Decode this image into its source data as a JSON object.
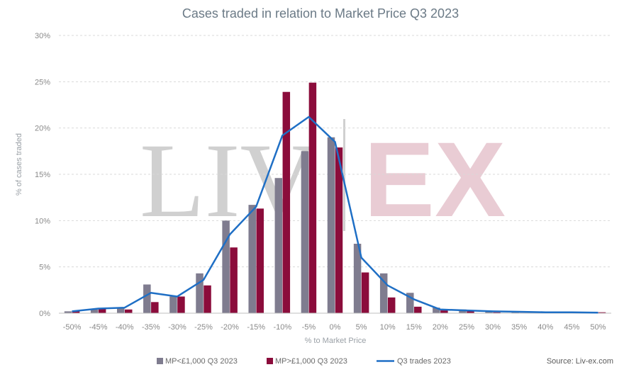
{
  "watermark": {
    "left": "LIV",
    "right": "EX"
  },
  "source": "Source: Liv-ex.com",
  "chart_data": {
    "type": "bar",
    "title": "Cases traded in relation to Market Price Q3 2023",
    "xlabel": "% to Market Price",
    "ylabel": "% of cases traded",
    "ylim": [
      0,
      30
    ],
    "yticks": [
      "0%",
      "5%",
      "10%",
      "15%",
      "20%",
      "25%",
      "30%"
    ],
    "grid": true,
    "legend_position": "bottom",
    "categories": [
      "-50%",
      "-45%",
      "-40%",
      "-35%",
      "-30%",
      "-25%",
      "-20%",
      "-15%",
      "-10%",
      "-5%",
      "0%",
      "5%",
      "10%",
      "15%",
      "20%",
      "25%",
      "30%",
      "35%",
      "40%",
      "45%",
      "50%"
    ],
    "series": [
      {
        "name": "MP<£1,000 Q3 2023",
        "kind": "bar",
        "color": "#7f7c8f",
        "values": [
          0.2,
          0.4,
          0.5,
          3.1,
          1.8,
          4.3,
          10.0,
          11.7,
          14.6,
          17.5,
          19.0,
          7.5,
          4.3,
          2.2,
          0.6,
          0.4,
          0.2,
          0.1,
          0.1,
          0.05,
          0.05
        ]
      },
      {
        "name": "MP>£1,000 Q3 2023",
        "kind": "bar",
        "color": "#8b0c3b",
        "values": [
          0.2,
          0.5,
          0.4,
          1.2,
          1.8,
          3.0,
          7.1,
          11.3,
          23.9,
          24.9,
          17.9,
          4.4,
          1.7,
          0.7,
          0.3,
          0.2,
          0.1,
          0.05,
          0.05,
          0.05,
          0.1
        ]
      },
      {
        "name": "Q3 trades 2023",
        "kind": "line",
        "color": "#1f6fc5",
        "values": [
          0.2,
          0.5,
          0.6,
          2.2,
          1.8,
          3.6,
          8.5,
          11.5,
          19.2,
          21.2,
          18.5,
          6.0,
          3.0,
          1.5,
          0.4,
          0.3,
          0.2,
          0.15,
          0.1,
          0.1,
          0.05
        ]
      }
    ]
  }
}
